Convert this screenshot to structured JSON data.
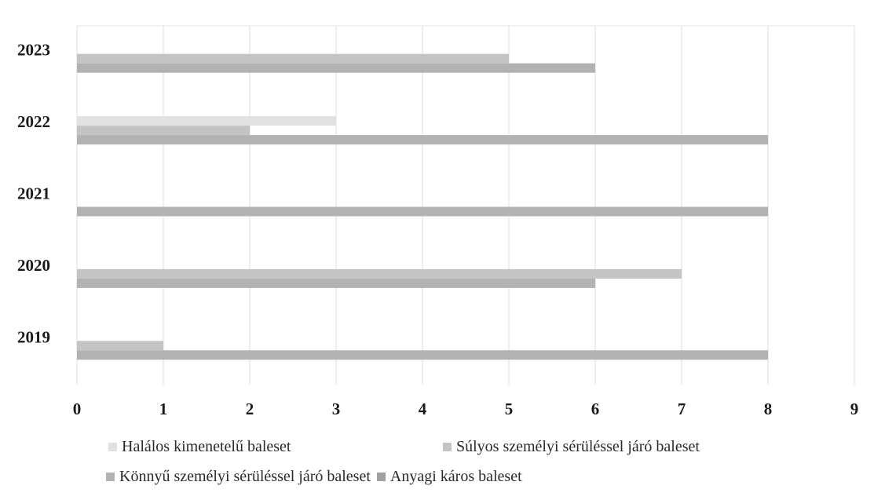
{
  "chart_data": {
    "type": "bar",
    "orientation": "horizontal",
    "categories": [
      "2019",
      "2020",
      "2021",
      "2022",
      "2023"
    ],
    "series": [
      {
        "name": "Halálos kimenetelű baleset",
        "values": [
          0,
          0,
          0,
          3,
          0
        ],
        "color": "#e1e1e1"
      },
      {
        "name": "Súlyos személyi sérüléssel járó baleset",
        "values": [
          1,
          7,
          0,
          2,
          5
        ],
        "color": "#c4c4c4"
      },
      {
        "name": "Könnyű személyi sérüléssel járó baleset",
        "values": [
          8,
          6,
          8,
          8,
          6
        ],
        "color": "#b2b2b2"
      },
      {
        "name": "Anyagi káros baleset",
        "values": [
          0,
          0,
          0,
          0,
          0
        ],
        "color": "#a0a0a0"
      }
    ],
    "x_ticks": [
      "0",
      "1",
      "2",
      "3",
      "4",
      "5",
      "6",
      "7",
      "8",
      "9"
    ],
    "xlim": [
      0,
      9
    ],
    "grid": true,
    "legend_position": "bottom",
    "title": "",
    "xlabel": "",
    "ylabel": ""
  }
}
